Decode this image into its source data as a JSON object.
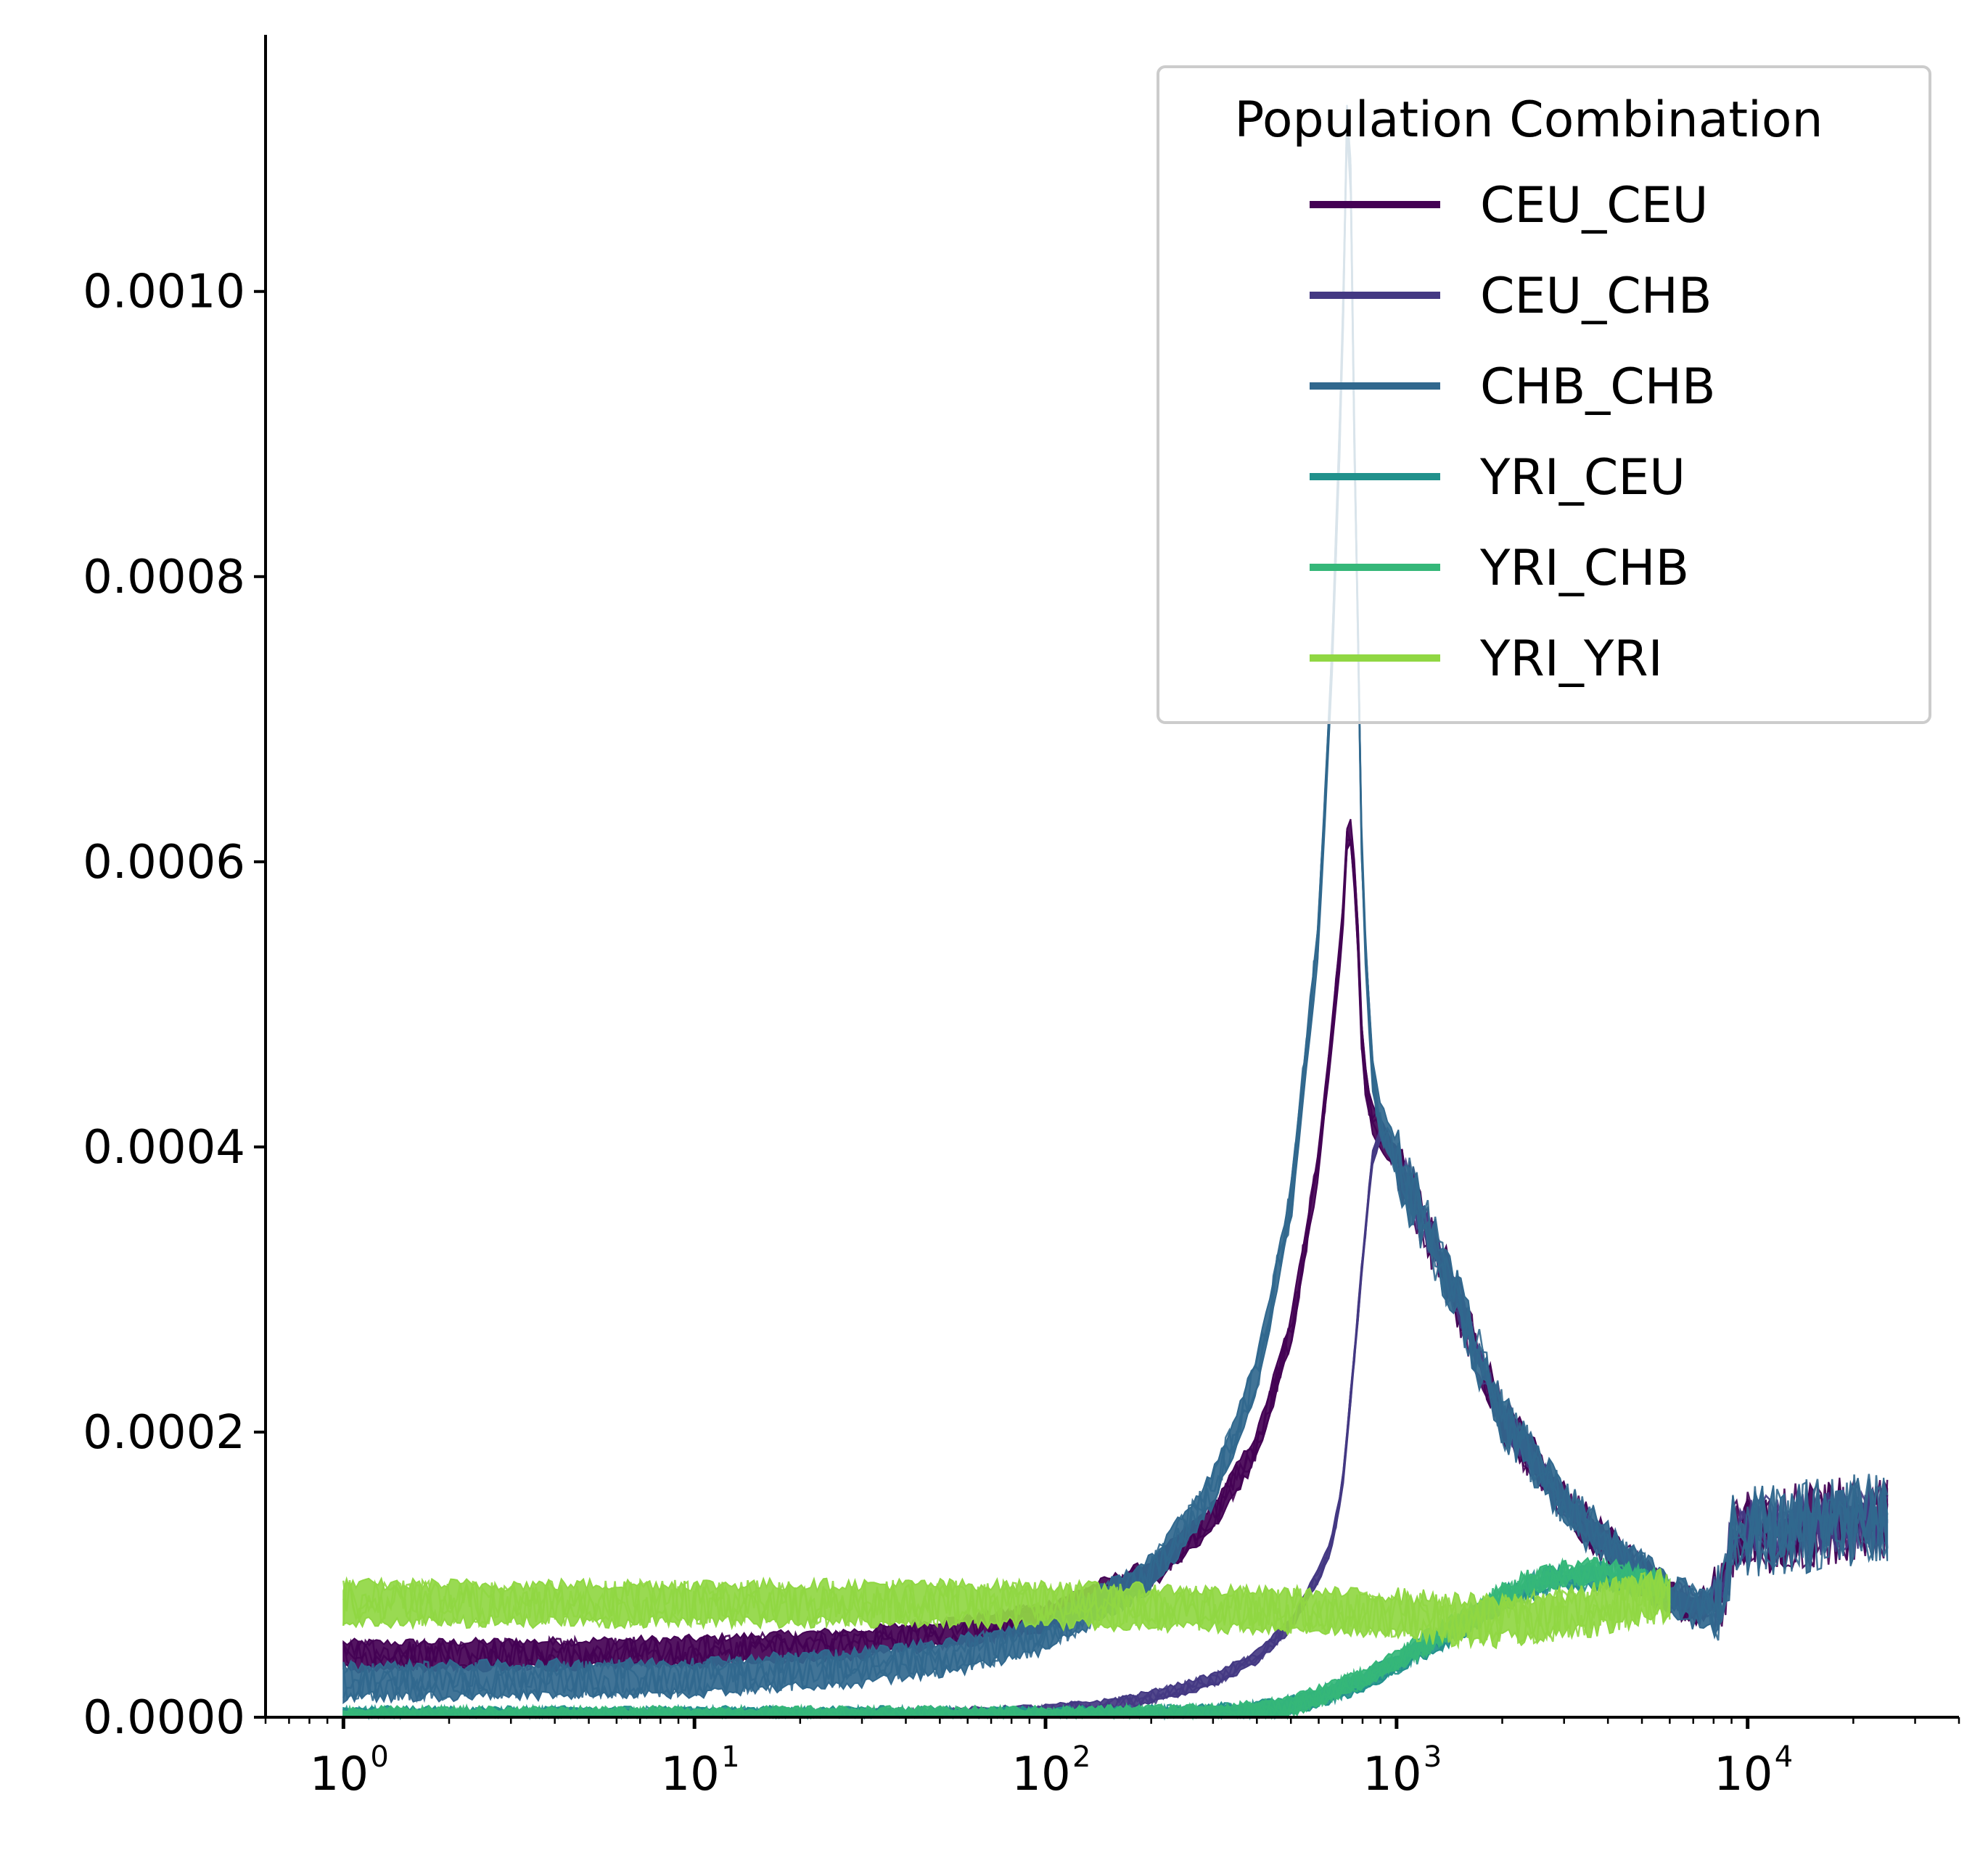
{
  "chart_data": {
    "type": "line",
    "title": "",
    "xlabel": "",
    "ylabel": "",
    "xscale": "log",
    "xlim": [
      0.6,
      40000
    ],
    "ylim": [
      0,
      0.00118
    ],
    "grid": false,
    "legend_placement": "top-right",
    "x_ticks": [
      {
        "value": 1,
        "base": "10",
        "exp": "0"
      },
      {
        "value": 10,
        "base": "10",
        "exp": "1"
      },
      {
        "value": 100,
        "base": "10",
        "exp": "2"
      },
      {
        "value": 1000,
        "base": "10",
        "exp": "3"
      },
      {
        "value": 10000,
        "base": "10",
        "exp": "4"
      }
    ],
    "y_ticks": [
      {
        "value": 0,
        "label": "0.0000"
      },
      {
        "value": 0.0002,
        "label": "0.0002"
      },
      {
        "value": 0.0004,
        "label": "0.0004"
      },
      {
        "value": 0.0006,
        "label": "0.0006"
      },
      {
        "value": 0.0008,
        "label": "0.0008"
      },
      {
        "value": 0.001,
        "label": "0.0010"
      }
    ],
    "legend": {
      "title": "Population Combination"
    },
    "series": [
      {
        "name": "CEU_CEU",
        "color": "#440154",
        "band_width": 1.8e-05,
        "x": [
          1,
          3,
          10,
          30,
          60,
          100,
          200,
          300,
          400,
          500,
          600,
          700,
          730,
          770,
          800,
          850,
          900,
          1000,
          1500,
          2000,
          3000,
          4000,
          5000,
          6000,
          7000,
          8500,
          9000,
          10000,
          15000,
          20000,
          25000
        ],
        "y": [
          4.3e-05,
          4.4e-05,
          4.6e-05,
          5.2e-05,
          6.1e-05,
          7e-05,
          0.0001,
          0.00014,
          0.00019,
          0.00027,
          0.00039,
          0.00055,
          0.00064,
          0.00057,
          0.00046,
          0.00042,
          0.00041,
          0.00039,
          0.00029,
          0.00021,
          0.00015,
          0.00012,
          0.0001,
          8.5e-05,
          7.8e-05,
          8e-05,
          0.000125,
          0.00013,
          0.000135,
          0.00014,
          0.00014
        ]
      },
      {
        "name": "CEU_CHB",
        "color": "#443983",
        "band_width": 8e-06,
        "x": [
          1,
          10,
          30,
          60,
          100,
          150,
          200,
          300,
          400,
          500,
          600,
          650,
          700,
          750,
          800,
          850,
          900,
          1000,
          1500,
          2000,
          3000,
          4000,
          5000,
          6000,
          7000,
          8500,
          9000,
          10000,
          15000,
          20000,
          25000
        ],
        "y": [
          0.0,
          0.0,
          1e-06,
          2e-06,
          4e-06,
          8e-06,
          1.4e-05,
          2.6e-05,
          4.2e-05,
          6.5e-05,
          0.0001,
          0.00012,
          0.00016,
          0.00024,
          0.00032,
          0.00039,
          0.00041,
          0.00039,
          0.00029,
          0.00021,
          0.00015,
          0.00012,
          0.0001,
          8.5e-05,
          7.8e-05,
          8e-05,
          0.000125,
          0.00013,
          0.000135,
          0.00014,
          0.00014
        ]
      },
      {
        "name": "CHB_CHB",
        "color": "#31688e",
        "band_width": 2.2e-05,
        "x": [
          1,
          3,
          10,
          30,
          60,
          100,
          200,
          300,
          400,
          500,
          600,
          650,
          700,
          730,
          760,
          800,
          850,
          900,
          1000,
          1500,
          2000,
          3000,
          4000,
          5000,
          6000,
          7000,
          8500,
          9000,
          10000,
          15000,
          20000,
          25000
        ],
        "y": [
          2.5e-05,
          2.6e-05,
          2.8e-05,
          3.5e-05,
          4.5e-05,
          5.8e-05,
          0.0001,
          0.00016,
          0.00024,
          0.00036,
          0.00055,
          0.00072,
          0.00095,
          0.00118,
          0.00088,
          0.00058,
          0.00045,
          0.00042,
          0.00039,
          0.00029,
          0.00021,
          0.00015,
          0.00012,
          0.0001,
          8.5e-05,
          7.8e-05,
          8e-05,
          0.000125,
          0.00013,
          0.000135,
          0.00014,
          0.00014
        ]
      },
      {
        "name": "YRI_CEU",
        "color": "#21918c",
        "band_width": 1.2e-05,
        "x": [
          1,
          100,
          200,
          300,
          400,
          500,
          600,
          800,
          1000,
          1500,
          2000,
          2500,
          3000,
          4000,
          5000,
          6000
        ],
        "y": [
          0.0,
          0.0,
          1e-06,
          2e-06,
          4e-06,
          8e-06,
          1.4e-05,
          2.5e-05,
          3.8e-05,
          6.2e-05,
          8.2e-05,
          9.3e-05,
          9.8e-05,
          9.9e-05,
          9.4e-05,
          8.8e-05
        ]
      },
      {
        "name": "YRI_CHB",
        "color": "#35b779",
        "band_width": 1.2e-05,
        "x": [
          1,
          100,
          200,
          300,
          400,
          500,
          600,
          800,
          1000,
          1500,
          2000,
          2500,
          3000,
          4000,
          5000,
          6000
        ],
        "y": [
          0.0,
          0.0,
          1e-06,
          2e-06,
          4e-06,
          8e-06,
          1.5e-05,
          2.7e-05,
          4e-05,
          6.5e-05,
          8.5e-05,
          9.6e-05,
          0.000101,
          0.000102,
          9.6e-05,
          9e-05
        ]
      },
      {
        "name": "YRI_YRI",
        "color": "#90d743",
        "band_width": 2.6e-05,
        "x": [
          1,
          10,
          50,
          100,
          200,
          400,
          700,
          1000,
          1500,
          2000,
          3000,
          4000,
          5000,
          6000
        ],
        "y": [
          8e-05,
          8e-05,
          8e-05,
          7.9e-05,
          7.7e-05,
          7.5e-05,
          7.4e-05,
          7.2e-05,
          6.8e-05,
          6.8e-05,
          7.2e-05,
          7.8e-05,
          8.3e-05,
          8.5e-05
        ]
      }
    ]
  }
}
